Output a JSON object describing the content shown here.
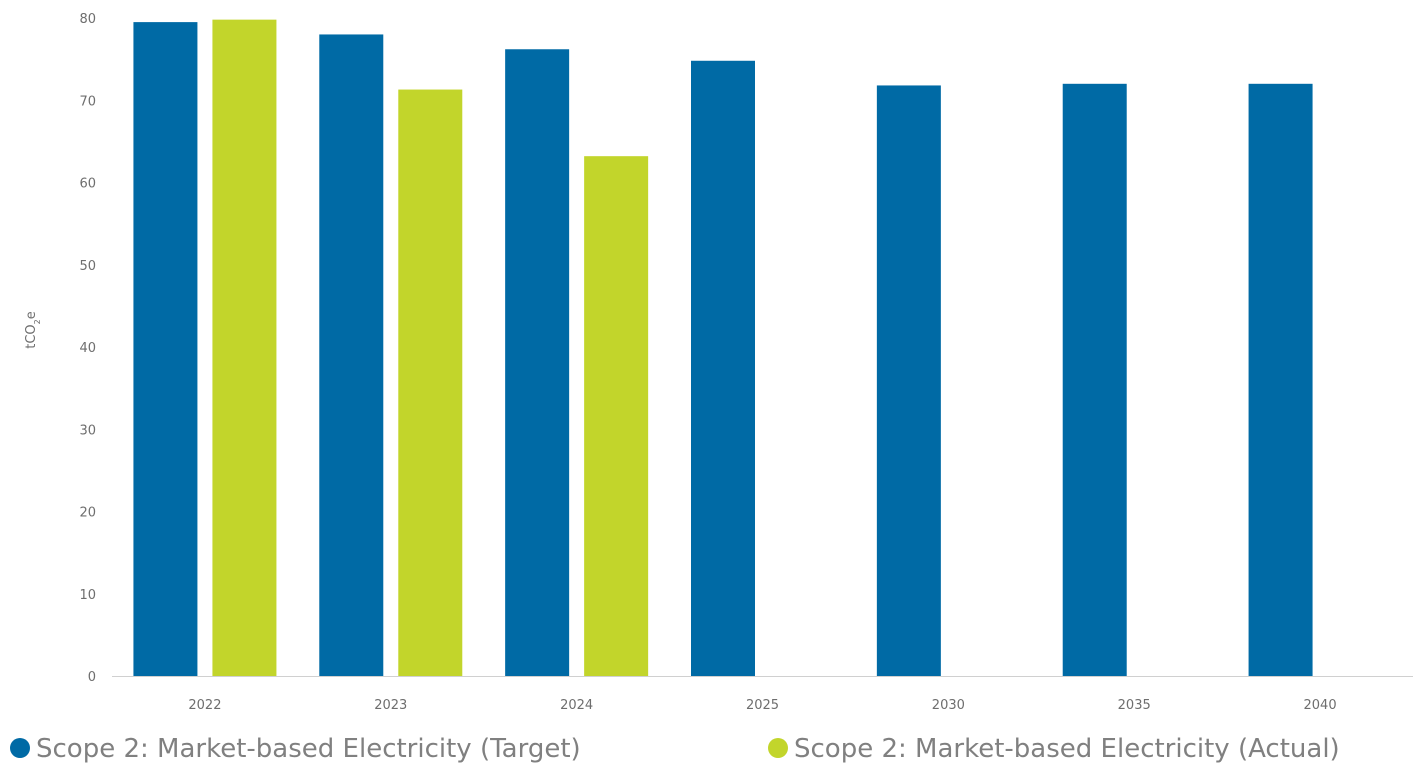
{
  "chart_data": {
    "type": "bar",
    "title": "",
    "xlabel": "",
    "ylabel": "tCO2e",
    "ylim": [
      0,
      80
    ],
    "yticks": [
      0,
      10,
      20,
      30,
      40,
      50,
      60,
      70,
      80
    ],
    "categories": [
      "2022",
      "2023",
      "2024",
      "2025",
      "2030",
      "2035",
      "2040"
    ],
    "series": [
      {
        "name": "Scope 2: Market-based Electricity (Target)",
        "color": "#006aa5",
        "values": [
          79.5,
          78.0,
          76.2,
          74.8,
          71.8,
          72.0,
          72.0
        ]
      },
      {
        "name": "Scope 2: Market-based Electricity (Actual)",
        "color": "#c2d52b",
        "values": [
          79.8,
          71.3,
          63.2,
          null,
          null,
          null,
          null
        ]
      }
    ],
    "grid": false,
    "legend": "bottom"
  }
}
